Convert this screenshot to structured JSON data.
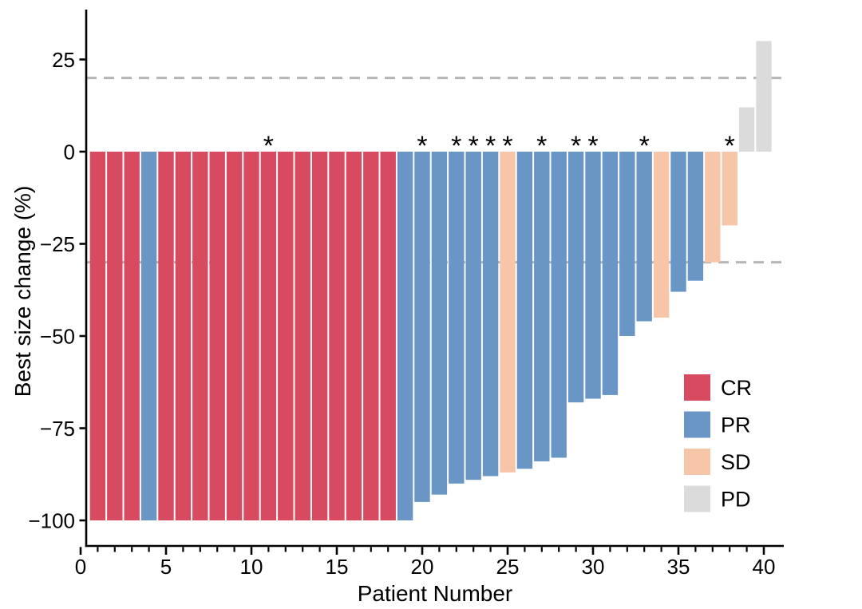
{
  "page": {
    "background": "#ffffff"
  },
  "chart_data": {
    "type": "bar",
    "subtype": "waterfall",
    "title": "",
    "xlabel": "Patient Number",
    "ylabel": "Best size change (%)",
    "xlim": [
      0.4,
      41.2
    ],
    "ylim": [
      -108,
      38.5
    ],
    "grid": false,
    "x_ticks": {
      "major": [
        0,
        5,
        10,
        15,
        20,
        25,
        30,
        35,
        40
      ],
      "minor_step": 1,
      "min": 0,
      "max": 40
    },
    "y_ticks": [
      {
        "value": 25,
        "label": "25"
      },
      {
        "value": 0,
        "label": "0"
      },
      {
        "value": -25,
        "label": "−25"
      },
      {
        "value": -50,
        "label": "−50"
      },
      {
        "value": -75,
        "label": "−75"
      },
      {
        "value": -100,
        "label": "−100"
      }
    ],
    "threshold_lines": [
      {
        "value": 20,
        "style": "dashed",
        "color": "#B5B5B5"
      },
      {
        "value": -30,
        "style": "dashed",
        "color": "#B5B5B5"
      }
    ],
    "legend_position": "inside-bottom-right",
    "legend": [
      {
        "label": "CR",
        "color": "#D84A5F"
      },
      {
        "label": "PR",
        "color": "#6996C5"
      },
      {
        "label": "SD",
        "color": "#F7C6A8"
      },
      {
        "label": "PD",
        "color": "#DBDBDB"
      }
    ],
    "asterisk_symbol": "*",
    "asterisk_patients": [
      11,
      20,
      22,
      23,
      24,
      25,
      27,
      29,
      30,
      33,
      38
    ],
    "patients": [
      {
        "n": 1,
        "value": -100,
        "response": "CR"
      },
      {
        "n": 2,
        "value": -100,
        "response": "CR"
      },
      {
        "n": 3,
        "value": -100,
        "response": "CR"
      },
      {
        "n": 4,
        "value": -100,
        "response": "PR"
      },
      {
        "n": 5,
        "value": -100,
        "response": "CR"
      },
      {
        "n": 6,
        "value": -100,
        "response": "CR"
      },
      {
        "n": 7,
        "value": -100,
        "response": "CR"
      },
      {
        "n": 8,
        "value": -100,
        "response": "CR"
      },
      {
        "n": 9,
        "value": -100,
        "response": "CR"
      },
      {
        "n": 10,
        "value": -100,
        "response": "CR"
      },
      {
        "n": 11,
        "value": -100,
        "response": "CR"
      },
      {
        "n": 12,
        "value": -100,
        "response": "CR"
      },
      {
        "n": 13,
        "value": -100,
        "response": "CR"
      },
      {
        "n": 14,
        "value": -100,
        "response": "CR"
      },
      {
        "n": 15,
        "value": -100,
        "response": "CR"
      },
      {
        "n": 16,
        "value": -100,
        "response": "CR"
      },
      {
        "n": 17,
        "value": -100,
        "response": "CR"
      },
      {
        "n": 18,
        "value": -100,
        "response": "CR"
      },
      {
        "n": 19,
        "value": -100,
        "response": "PR"
      },
      {
        "n": 20,
        "value": -95,
        "response": "PR"
      },
      {
        "n": 21,
        "value": -93,
        "response": "PR"
      },
      {
        "n": 22,
        "value": -90,
        "response": "PR"
      },
      {
        "n": 23,
        "value": -89,
        "response": "PR"
      },
      {
        "n": 24,
        "value": -88,
        "response": "PR"
      },
      {
        "n": 25,
        "value": -87,
        "response": "SD"
      },
      {
        "n": 26,
        "value": -86,
        "response": "PR"
      },
      {
        "n": 27,
        "value": -84,
        "response": "PR"
      },
      {
        "n": 28,
        "value": -83,
        "response": "PR"
      },
      {
        "n": 29,
        "value": -68,
        "response": "PR"
      },
      {
        "n": 30,
        "value": -67,
        "response": "PR"
      },
      {
        "n": 31,
        "value": -66,
        "response": "PR"
      },
      {
        "n": 32,
        "value": -50,
        "response": "PR"
      },
      {
        "n": 33,
        "value": -46,
        "response": "PR"
      },
      {
        "n": 34,
        "value": -45,
        "response": "SD"
      },
      {
        "n": 35,
        "value": -38,
        "response": "PR"
      },
      {
        "n": 36,
        "value": -35,
        "response": "PR"
      },
      {
        "n": 37,
        "value": -30,
        "response": "SD"
      },
      {
        "n": 38,
        "value": -20,
        "response": "SD"
      },
      {
        "n": 39,
        "value": 12,
        "response": "PD"
      },
      {
        "n": 40,
        "value": 30,
        "response": "PD"
      }
    ]
  }
}
